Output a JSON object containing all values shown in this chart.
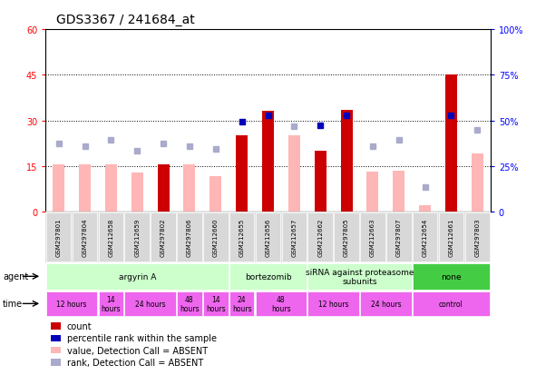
{
  "title": "GDS3367 / 241684_at",
  "samples": [
    "GSM297801",
    "GSM297804",
    "GSM212658",
    "GSM212659",
    "GSM297802",
    "GSM297806",
    "GSM212660",
    "GSM212655",
    "GSM212656",
    "GSM212657",
    "GSM212662",
    "GSM297805",
    "GSM212663",
    "GSM297807",
    "GSM212654",
    "GSM212661",
    "GSM297803"
  ],
  "count_values": [
    15.5,
    15.5,
    15.5,
    12.8,
    15.5,
    15.5,
    11.5,
    25.0,
    33.0,
    25.0,
    20.0,
    33.5,
    13.0,
    13.5,
    2.0,
    45.0,
    19.0
  ],
  "count_absent": [
    true,
    true,
    true,
    true,
    false,
    true,
    true,
    false,
    false,
    true,
    false,
    false,
    true,
    true,
    true,
    false,
    true
  ],
  "rank_values": [
    22.5,
    21.5,
    23.5,
    20.0,
    22.5,
    21.5,
    20.5,
    29.5,
    31.5,
    28.0,
    28.5,
    31.5,
    21.5,
    23.5,
    8.0,
    31.5,
    27.0
  ],
  "rank_absent": [
    true,
    true,
    true,
    true,
    true,
    true,
    true,
    false,
    false,
    true,
    false,
    false,
    true,
    true,
    true,
    false,
    true
  ],
  "ylim_left": [
    0,
    60
  ],
  "ylim_right": [
    0,
    100
  ],
  "yticks_left": [
    0,
    15,
    30,
    45,
    60
  ],
  "yticks_right": [
    0,
    25,
    50,
    75,
    100
  ],
  "ytick_labels_left": [
    "0",
    "15",
    "30",
    "45",
    "60"
  ],
  "ytick_labels_right": [
    "0",
    "25%",
    "50%",
    "75%",
    "100%"
  ],
  "color_count_present": "#cc0000",
  "color_count_absent": "#ffb6b6",
  "color_rank_present": "#0000bb",
  "color_rank_absent": "#aaaacc",
  "agent_groups": [
    {
      "label": "argyrin A",
      "start": 0,
      "end": 7,
      "color": "#ccffcc"
    },
    {
      "label": "bortezomib",
      "start": 7,
      "end": 10,
      "color": "#ccffcc"
    },
    {
      "label": "siRNA against proteasome\nsubunits",
      "start": 10,
      "end": 14,
      "color": "#ccffcc"
    },
    {
      "label": "none",
      "start": 14,
      "end": 17,
      "color": "#44cc44"
    }
  ],
  "time_groups": [
    {
      "label": "12 hours",
      "start": 0,
      "end": 2
    },
    {
      "label": "14\nhours",
      "start": 2,
      "end": 3
    },
    {
      "label": "24 hours",
      "start": 3,
      "end": 5
    },
    {
      "label": "48\nhours",
      "start": 5,
      "end": 6
    },
    {
      "label": "14\nhours",
      "start": 6,
      "end": 7
    },
    {
      "label": "24\nhours",
      "start": 7,
      "end": 8
    },
    {
      "label": "48\nhours",
      "start": 8,
      "end": 10
    },
    {
      "label": "12 hours",
      "start": 10,
      "end": 12
    },
    {
      "label": "24 hours",
      "start": 12,
      "end": 14
    },
    {
      "label": "control",
      "start": 14,
      "end": 17
    }
  ],
  "legend_items": [
    {
      "label": "count",
      "color": "#cc0000"
    },
    {
      "label": "percentile rank within the sample",
      "color": "#0000bb"
    },
    {
      "label": "value, Detection Call = ABSENT",
      "color": "#ffb6b6"
    },
    {
      "label": "rank, Detection Call = ABSENT",
      "color": "#aaaacc"
    }
  ],
  "bg_color": "#ffffff",
  "plot_bg": "#ffffff",
  "title_fontsize": 10,
  "tick_fontsize": 7,
  "bar_width": 0.45
}
